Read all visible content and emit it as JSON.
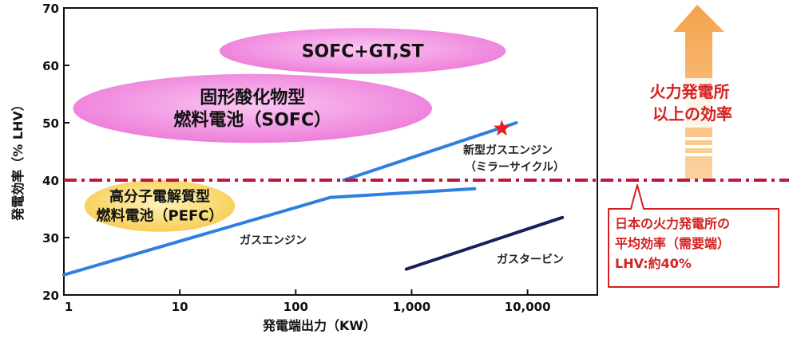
{
  "chart_data": {
    "type": "line",
    "ylabel": "発電効率（% LHV）",
    "xlabel": "発電端出力（KW）",
    "xscale": "log",
    "xlim": [
      1,
      40000
    ],
    "ylim": [
      20,
      70
    ],
    "x_ticks": [
      {
        "value": 1,
        "label": "1"
      },
      {
        "value": 10,
        "label": "10"
      },
      {
        "value": 100,
        "label": "100"
      },
      {
        "value": 1000,
        "label": "1,000"
      },
      {
        "value": 10000,
        "label": "10,000"
      }
    ],
    "y_ticks": [
      {
        "value": 20,
        "label": "20"
      },
      {
        "value": 30,
        "label": "30"
      },
      {
        "value": 40,
        "label": "40"
      },
      {
        "value": 50,
        "label": "50"
      },
      {
        "value": 60,
        "label": "60"
      },
      {
        "value": 70,
        "label": "70"
      }
    ],
    "series": [
      {
        "name": "ガスエンジン",
        "color": "#2f7fe0",
        "points": [
          [
            1,
            23.5
          ],
          [
            200,
            37
          ],
          [
            3500,
            38.5
          ]
        ]
      },
      {
        "name": "新型ガスエンジン（ミラーサイクル）",
        "color": "#2f7fe0",
        "points": [
          [
            260,
            40
          ],
          [
            8000,
            50
          ]
        ]
      },
      {
        "name": "ガスタービン",
        "color": "#1a1f5c",
        "points": [
          [
            900,
            24.5
          ],
          [
            20000,
            33.5
          ]
        ]
      }
    ],
    "regions": [
      {
        "label": "SOFC+GT,ST",
        "lines": [
          "SOFC+GT,ST"
        ],
        "color": "#ee80dc",
        "center": [
          350,
          62.5
        ],
        "x_extent": [
          22,
          6500
        ],
        "y_extent": [
          58.5,
          66.5
        ]
      },
      {
        "label": "固形酸化物型燃料電池（SOFC）",
        "lines": [
          "固形酸化物型",
          "燃料電池（SOFC）"
        ],
        "color": "#ee80dc",
        "center": [
          30,
          52.5
        ],
        "x_extent": [
          1.2,
          1500
        ],
        "y_extent": [
          46.5,
          58.5
        ]
      },
      {
        "label": "高分子電解質型燃料電池（PEFC）",
        "lines": [
          "高分子電解質型",
          "燃料電池（PEFC）"
        ],
        "color": "#f8d25e",
        "center": [
          6,
          35.5
        ],
        "x_extent": [
          1.5,
          30
        ],
        "y_extent": [
          31,
          40
        ]
      }
    ],
    "markers": [
      {
        "x": 6000,
        "y": 49,
        "shape": "star",
        "color": "#e81e1e"
      }
    ],
    "reference_line": {
      "y": 40,
      "style": "dash-dot",
      "color": "#c2143c"
    },
    "annotations": {
      "arrow_label": [
        "火力発電所",
        "以上の効率"
      ],
      "box_label": [
        "日本の火力発電所の",
        "平均効率（需要端）",
        "LHV:約40%"
      ]
    }
  }
}
